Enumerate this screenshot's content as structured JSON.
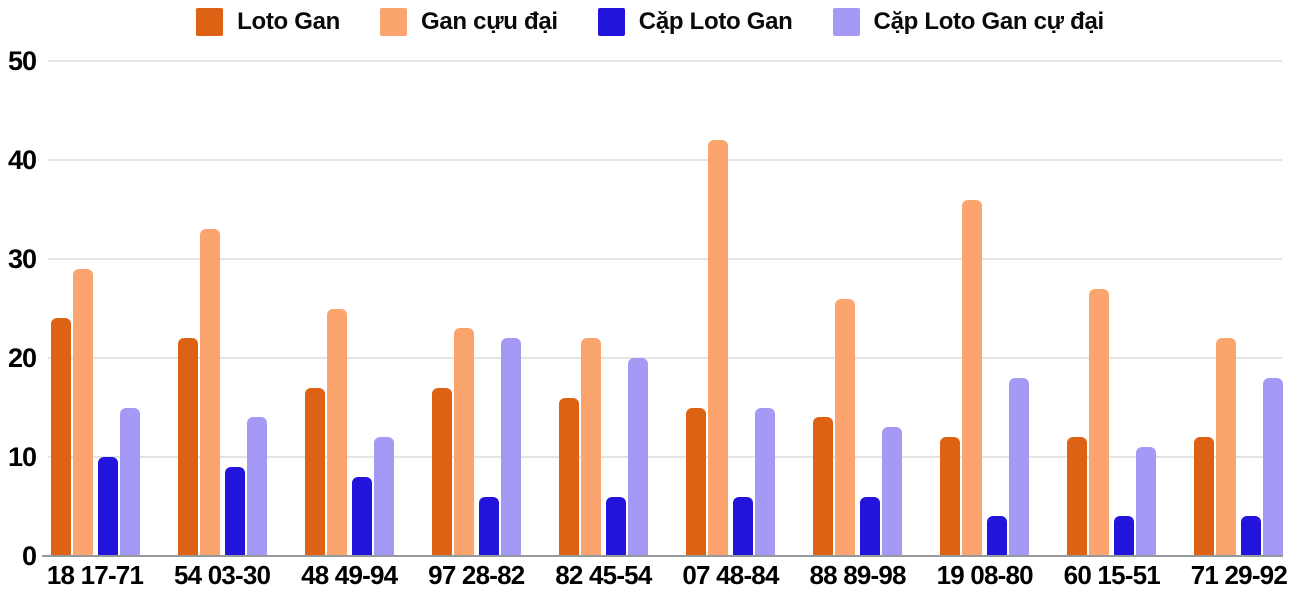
{
  "chart_data": {
    "type": "bar",
    "title": "",
    "categories": [
      "18 17-71",
      "54 03-30",
      "48 49-94",
      "97 28-82",
      "82 45-54",
      "07 48-84",
      "88 89-98",
      "19 08-80",
      "60 15-51",
      "71 29-92"
    ],
    "series": [
      {
        "name": "Loto Gan",
        "color": "#dd6214",
        "values": [
          24,
          22,
          17,
          17,
          16,
          15,
          14,
          12,
          12,
          12
        ]
      },
      {
        "name": "Gan cựu đại",
        "color": "#fca46d",
        "values": [
          29,
          33,
          25,
          23,
          22,
          42,
          26,
          36,
          27,
          22
        ]
      },
      {
        "name": "Cặp Loto Gan",
        "color": "#2314dc",
        "values": [
          10,
          9,
          8,
          6,
          6,
          6,
          6,
          4,
          4,
          4
        ]
      },
      {
        "name": "Cặp Loto Gan cự đại",
        "color": "#a49af6",
        "values": [
          15,
          14,
          12,
          22,
          20,
          15,
          13,
          18,
          11,
          18
        ]
      }
    ],
    "xlabel": "",
    "ylabel": "",
    "ylim": [
      0,
      50
    ],
    "yticks": [
      0,
      10,
      20,
      30,
      40,
      50
    ],
    "grid": true,
    "legend_position": "top",
    "grid_color": "#e4e4e4",
    "axis_color": "#96999c",
    "text_color": "#000000"
  }
}
